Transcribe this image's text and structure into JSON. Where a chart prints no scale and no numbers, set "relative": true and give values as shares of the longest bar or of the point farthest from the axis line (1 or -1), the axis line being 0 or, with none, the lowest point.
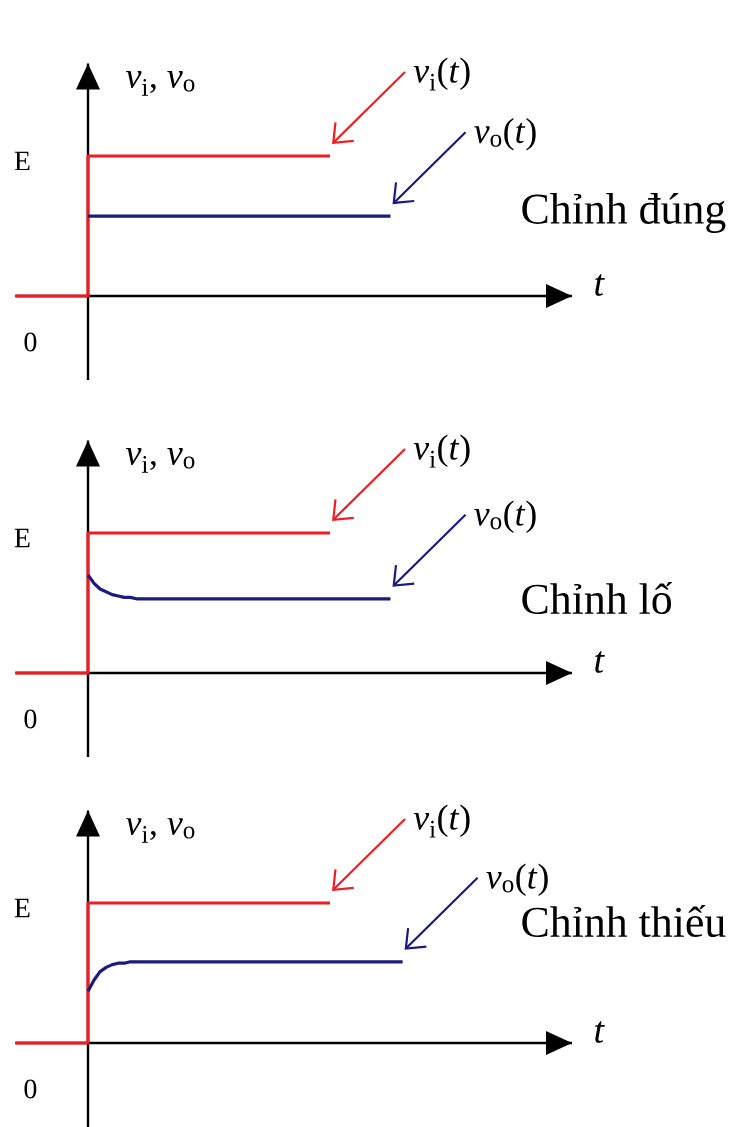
{
  "chart_data": [
    {
      "type": "line",
      "relative": true,
      "title": "Chỉnh đúng",
      "xlabel": "t",
      "ylabel": "*v*$_{i}$, *v*$_{o}$",
      "annotations": [
        "E",
        "0"
      ],
      "marker": "none",
      "line_style": "solid",
      "categories": [
        null,
        null,
        null,
        null,
        null,
        null,
        null,
        null,
        null,
        null,
        null,
        null,
        null,
        null,
        null,
        null,
        null,
        null,
        null,
        null,
        null,
        null,
        null,
        null,
        null,
        null,
        null,
        null,
        null,
        null,
        null,
        null,
        null,
        null,
        null,
        null,
        null,
        null,
        null,
        null,
        null,
        null,
        null,
        null,
        null,
        null,
        null,
        null,
        null,
        null,
        null,
        null,
        null,
        null,
        null,
        null,
        null,
        null,
        null,
        null,
        null,
        null,
        null,
        null,
        null,
        null,
        null,
        null,
        null,
        null,
        null,
        null,
        null,
        null,
        null,
        null,
        null,
        null,
        null,
        null,
        null,
        null,
        null,
        null,
        null,
        null,
        null,
        null,
        null,
        null,
        null,
        null,
        null
      ],
      "series": [
        {
          "name": "*v*$_{i}$(*t*)",
          "type": "step",
          "color": "#ee1d23",
          "values": [
            0,
            0,
            0,
            0,
            0,
            0,
            0,
            0,
            0,
            0,
            0,
            0,
            1,
            1,
            1,
            1,
            1,
            1,
            1,
            1,
            1,
            1,
            1,
            1,
            1,
            1,
            1,
            1,
            1,
            1,
            1,
            1,
            1,
            1,
            1,
            1,
            1,
            1,
            1,
            1,
            1,
            1,
            1,
            1,
            1,
            1,
            1,
            1,
            1,
            1,
            1,
            1,
            1,
            null,
            null,
            null,
            null,
            null,
            null,
            null,
            null,
            null,
            null,
            null,
            null,
            null,
            null,
            null,
            null,
            null,
            null,
            null,
            null,
            null,
            null,
            null,
            null,
            null,
            null,
            null,
            null,
            null,
            null,
            null,
            null,
            null,
            null,
            null,
            null,
            null,
            null,
            null,
            null
          ]
        },
        {
          "name": "*v*$_{o}$(*t*)",
          "color": "#1b1b7e",
          "values": [
            null,
            null,
            null,
            null,
            null,
            null,
            null,
            null,
            null,
            null,
            null,
            null,
            0.57,
            0.57,
            0.57,
            0.57,
            0.57,
            0.57,
            0.57,
            0.57,
            0.57,
            0.57,
            0.57,
            0.57,
            0.57,
            0.57,
            0.57,
            0.57,
            0.57,
            0.57,
            0.57,
            0.57,
            0.57,
            0.57,
            0.57,
            0.57,
            0.57,
            0.57,
            0.57,
            0.57,
            0.57,
            0.57,
            0.57,
            0.57,
            0.57,
            0.57,
            0.57,
            0.57,
            0.57,
            0.57,
            0.57,
            0.57,
            0.57,
            0.57,
            0.57,
            0.57,
            0.57,
            0.57,
            0.57,
            0.57,
            0.57,
            0.57,
            0.57,
            null,
            null,
            null,
            null,
            null,
            null,
            null,
            null,
            null,
            null,
            null,
            null,
            null,
            null,
            null,
            null,
            null,
            null,
            null,
            null,
            null,
            null,
            null,
            null,
            null,
            null,
            null,
            null,
            null,
            null
          ]
        }
      ]
    },
    {
      "type": "line",
      "relative": true,
      "title": "Chỉnh lố",
      "xlabel": "t",
      "ylabel": "*v*$_{i}$, *v*$_{o}$",
      "annotations": [
        "E",
        "0"
      ],
      "marker": "none",
      "line_style": "solid",
      "categories": [
        null,
        null,
        null,
        null,
        null,
        null,
        null,
        null,
        null,
        null,
        null,
        null,
        null,
        null,
        null,
        null,
        null,
        null,
        null,
        null,
        null,
        null,
        null,
        null,
        null,
        null,
        null,
        null,
        null,
        null,
        null,
        null,
        null,
        null,
        null,
        null,
        null,
        null,
        null,
        null,
        null,
        null,
        null,
        null,
        null,
        null,
        null,
        null,
        null,
        null,
        null,
        null,
        null,
        null,
        null,
        null,
        null,
        null,
        null,
        null,
        null,
        null,
        null,
        null,
        null,
        null,
        null,
        null,
        null,
        null,
        null,
        null,
        null,
        null,
        null,
        null,
        null,
        null,
        null,
        null,
        null,
        null,
        null,
        null,
        null,
        null,
        null,
        null,
        null,
        null,
        null,
        null,
        null
      ],
      "series": [
        {
          "name": "*v*$_{i}$(*t*)",
          "type": "step",
          "color": "#ee1d23",
          "values": [
            0,
            0,
            0,
            0,
            0,
            0,
            0,
            0,
            0,
            0,
            0,
            0,
            1,
            1,
            1,
            1,
            1,
            1,
            1,
            1,
            1,
            1,
            1,
            1,
            1,
            1,
            1,
            1,
            1,
            1,
            1,
            1,
            1,
            1,
            1,
            1,
            1,
            1,
            1,
            1,
            1,
            1,
            1,
            1,
            1,
            1,
            1,
            1,
            1,
            1,
            1,
            1,
            1,
            null,
            null,
            null,
            null,
            null,
            null,
            null,
            null,
            null,
            null,
            null,
            null,
            null,
            null,
            null,
            null,
            null,
            null,
            null,
            null,
            null,
            null,
            null,
            null,
            null,
            null,
            null,
            null,
            null,
            null,
            null,
            null,
            null,
            null,
            null,
            null,
            null,
            null,
            null,
            null
          ]
        },
        {
          "name": "*v*$_{o}$(*t*)",
          "color": "#1b1b7e",
          "values": [
            null,
            null,
            null,
            null,
            null,
            null,
            null,
            null,
            null,
            null,
            null,
            null,
            0.7,
            0.64,
            0.6,
            0.58,
            0.56,
            0.55,
            0.54,
            0.54,
            0.53,
            0.53,
            0.53,
            0.53,
            0.53,
            0.53,
            0.53,
            0.53,
            0.53,
            0.53,
            0.53,
            0.53,
            0.53,
            0.53,
            0.53,
            0.53,
            0.53,
            0.53,
            0.53,
            0.53,
            0.53,
            0.53,
            0.53,
            0.53,
            0.53,
            0.53,
            0.53,
            0.53,
            0.53,
            0.53,
            0.53,
            0.53,
            0.53,
            0.53,
            0.53,
            0.53,
            0.53,
            0.53,
            0.53,
            0.53,
            0.53,
            0.53,
            0.53,
            null,
            null,
            null,
            null,
            null,
            null,
            null,
            null,
            null,
            null,
            null,
            null,
            null,
            null,
            null,
            null,
            null,
            null,
            null,
            null,
            null,
            null,
            null,
            null,
            null,
            null,
            null,
            null,
            null,
            null
          ]
        }
      ]
    },
    {
      "type": "line",
      "relative": true,
      "title": "Chỉnh thiếu",
      "xlabel": "t",
      "ylabel": "*v*$_{i}$, *v*$_{o}$",
      "annotations": [
        "E",
        "0"
      ],
      "marker": "none",
      "line_style": "solid",
      "categories": [
        null,
        null,
        null,
        null,
        null,
        null,
        null,
        null,
        null,
        null,
        null,
        null,
        null,
        null,
        null,
        null,
        null,
        null,
        null,
        null,
        null,
        null,
        null,
        null,
        null,
        null,
        null,
        null,
        null,
        null,
        null,
        null,
        null,
        null,
        null,
        null,
        null,
        null,
        null,
        null,
        null,
        null,
        null,
        null,
        null,
        null,
        null,
        null,
        null,
        null,
        null,
        null,
        null,
        null,
        null,
        null,
        null,
        null,
        null,
        null,
        null,
        null,
        null,
        null,
        null,
        null,
        null,
        null,
        null,
        null,
        null,
        null,
        null,
        null,
        null,
        null,
        null,
        null,
        null,
        null,
        null,
        null,
        null,
        null,
        null,
        null,
        null,
        null,
        null,
        null,
        null,
        null,
        null
      ],
      "series": [
        {
          "name": "*v*$_{i}$(*t*)",
          "type": "step",
          "color": "#ee1d23",
          "values": [
            0,
            0,
            0,
            0,
            0,
            0,
            0,
            0,
            0,
            0,
            0,
            0,
            1,
            1,
            1,
            1,
            1,
            1,
            1,
            1,
            1,
            1,
            1,
            1,
            1,
            1,
            1,
            1,
            1,
            1,
            1,
            1,
            1,
            1,
            1,
            1,
            1,
            1,
            1,
            1,
            1,
            1,
            1,
            1,
            1,
            1,
            1,
            1,
            1,
            1,
            1,
            1,
            1,
            null,
            null,
            null,
            null,
            null,
            null,
            null,
            null,
            null,
            null,
            null,
            null,
            null,
            null,
            null,
            null,
            null,
            null,
            null,
            null,
            null,
            null,
            null,
            null,
            null,
            null,
            null,
            null,
            null,
            null,
            null,
            null,
            null,
            null,
            null,
            null,
            null,
            null,
            null,
            null
          ]
        },
        {
          "name": "*v*$_{o}$(*t*)",
          "color": "#1b1b7e",
          "values": [
            null,
            null,
            null,
            null,
            null,
            null,
            null,
            null,
            null,
            null,
            null,
            null,
            0.37,
            0.45,
            0.51,
            0.54,
            0.56,
            0.57,
            0.57,
            0.58,
            0.58,
            0.58,
            0.58,
            0.58,
            0.58,
            0.58,
            0.58,
            0.58,
            0.58,
            0.58,
            0.58,
            0.58,
            0.58,
            0.58,
            0.58,
            0.58,
            0.58,
            0.58,
            0.58,
            0.58,
            0.58,
            0.58,
            0.58,
            0.58,
            0.58,
            0.58,
            0.58,
            0.58,
            0.58,
            0.58,
            0.58,
            0.58,
            0.58,
            0.58,
            0.58,
            0.58,
            0.58,
            0.58,
            0.58,
            0.58,
            0.58,
            0.58,
            0.58,
            0.58,
            0.58,
            null,
            null,
            null,
            null,
            null,
            null,
            null,
            null,
            null,
            null,
            null,
            null,
            null,
            null,
            null,
            null,
            null,
            null,
            null,
            null,
            null,
            null,
            null,
            null,
            null,
            null,
            null,
            null
          ]
        }
      ]
    }
  ]
}
